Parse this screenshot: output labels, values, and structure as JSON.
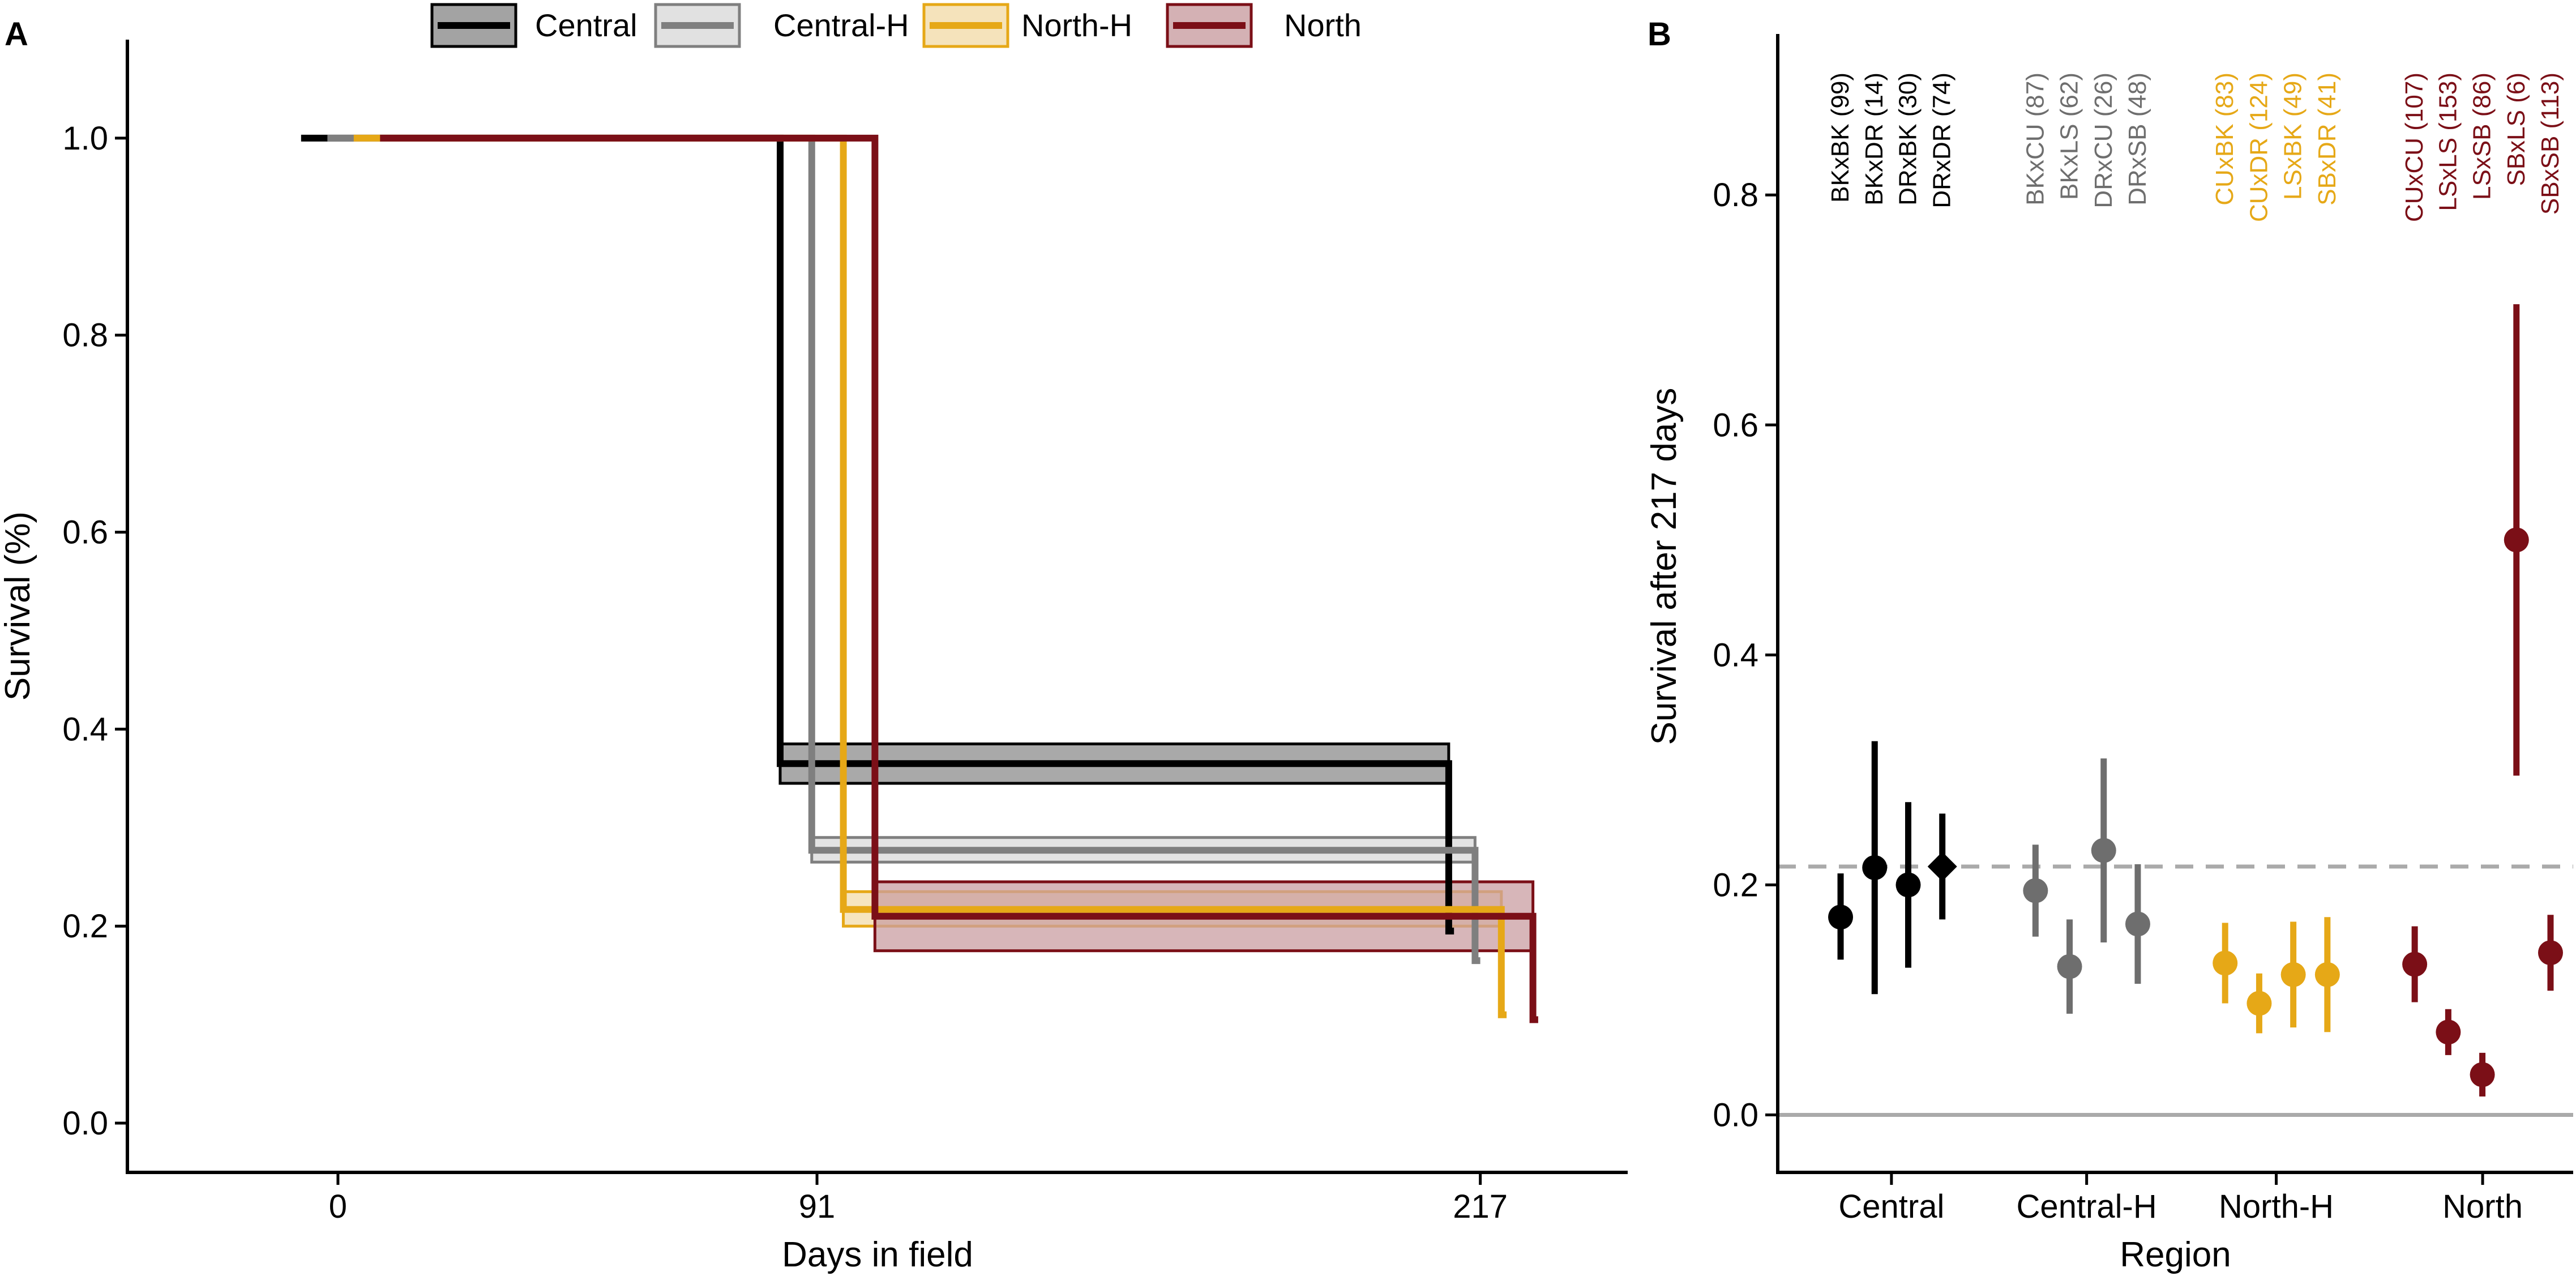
{
  "chart_data": [
    {
      "panel": "A",
      "type": "line",
      "subtype": "kaplan-meier step survival curves with confidence bands",
      "xlabel": "Days in field",
      "ylabel": "Survival (%)",
      "xlim": [
        -40,
        245
      ],
      "ylim": [
        -0.05,
        1.1
      ],
      "xticks": [
        0,
        91,
        217
      ],
      "xtick_labels": [
        "0",
        "91",
        "217"
      ],
      "yticks": [
        0,
        0.2,
        0.4,
        0.6,
        0.8,
        1
      ],
      "ytick_labels": [
        "0.0",
        "0.2",
        "0.4",
        "0.6",
        "0.8",
        "1.0"
      ],
      "legend_position": "top",
      "legend": [
        "Central",
        "Central-H",
        "North-H",
        "North"
      ],
      "series": [
        {
          "name": "Central",
          "color": "#000000",
          "fill": "#8c8c8c",
          "steps": [
            [
              -7,
              1.0
            ],
            [
              84,
              1.0
            ],
            [
              84,
              0.365
            ],
            [
              211,
              0.365
            ],
            [
              211,
              0.195
            ],
            [
              212,
              0.195
            ]
          ],
          "band": [
            [
              84,
              0.345,
              0.385
            ],
            [
              211,
              0.345,
              0.385
            ]
          ]
        },
        {
          "name": "Central-H",
          "color": "#7f7f7f",
          "fill": "#d9d9d9",
          "steps": [
            [
              -2,
              1.0
            ],
            [
              90,
              1.0
            ],
            [
              90,
              0.277
            ],
            [
              216,
              0.277
            ],
            [
              216,
              0.165
            ],
            [
              217,
              0.165
            ]
          ],
          "band": [
            [
              90,
              0.265,
              0.29
            ],
            [
              216,
              0.265,
              0.29
            ]
          ]
        },
        {
          "name": "North-H",
          "color": "#e6a817",
          "fill": "#f3dcaa",
          "steps": [
            [
              3,
              1.0
            ],
            [
              96,
              1.0
            ],
            [
              96,
              0.217
            ],
            [
              221,
              0.217
            ],
            [
              221,
              0.11
            ],
            [
              222,
              0.11
            ]
          ],
          "band": [
            [
              96,
              0.2,
              0.235
            ],
            [
              221,
              0.2,
              0.235
            ]
          ]
        },
        {
          "name": "North",
          "color": "#7b0f17",
          "fill": "#c99ea1",
          "steps": [
            [
              8,
              1.0
            ],
            [
              102,
              1.0
            ],
            [
              102,
              0.21
            ],
            [
              227,
              0.21
            ],
            [
              227,
              0.105
            ],
            [
              228,
              0.105
            ]
          ],
          "band": [
            [
              102,
              0.175,
              0.245
            ],
            [
              227,
              0.175,
              0.245
            ]
          ]
        }
      ]
    },
    {
      "panel": "B",
      "type": "scatter",
      "subtype": "point estimates with error bars",
      "xlabel": "Region",
      "ylabel": "Survival after 217 days",
      "ylim": [
        -0.05,
        0.94
      ],
      "yticks": [
        0,
        0.2,
        0.4,
        0.6,
        0.8
      ],
      "ytick_labels": [
        "0.0",
        "0.2",
        "0.4",
        "0.6",
        "0.8"
      ],
      "reference_line": 0.216,
      "groups": [
        "Central",
        "Central-H",
        "North-H",
        "North"
      ],
      "points": [
        {
          "label": "BKxBK (99)",
          "group": "Central",
          "y": 0.172,
          "lo": 0.135,
          "hi": 0.21,
          "color": "#000000",
          "shape": "circle"
        },
        {
          "label": "BKxDR (14)",
          "group": "Central",
          "y": 0.215,
          "lo": 0.105,
          "hi": 0.325,
          "color": "#000000",
          "shape": "circle"
        },
        {
          "label": "DRxBK (30)",
          "group": "Central",
          "y": 0.2,
          "lo": 0.128,
          "hi": 0.272,
          "color": "#000000",
          "shape": "circle"
        },
        {
          "label": "DRxDR (74)",
          "group": "Central",
          "y": 0.216,
          "lo": 0.17,
          "hi": 0.262,
          "color": "#000000",
          "shape": "diamond"
        },
        {
          "label": "BKxCU (87)",
          "group": "Central-H",
          "y": 0.195,
          "lo": 0.155,
          "hi": 0.235,
          "color": "#6e6e6e",
          "shape": "circle"
        },
        {
          "label": "BKxLS (62)",
          "group": "Central-H",
          "y": 0.129,
          "lo": 0.088,
          "hi": 0.17,
          "color": "#6e6e6e",
          "shape": "circle"
        },
        {
          "label": "DRxCU (26)",
          "group": "Central-H",
          "y": 0.23,
          "lo": 0.15,
          "hi": 0.31,
          "color": "#6e6e6e",
          "shape": "circle"
        },
        {
          "label": "DRxSB (48)",
          "group": "Central-H",
          "y": 0.166,
          "lo": 0.114,
          "hi": 0.218,
          "color": "#6e6e6e",
          "shape": "circle"
        },
        {
          "label": "CUxBK (83)",
          "group": "North-H",
          "y": 0.132,
          "lo": 0.097,
          "hi": 0.167,
          "color": "#e6a817",
          "shape": "circle"
        },
        {
          "label": "CUxDR (124)",
          "group": "North-H",
          "y": 0.097,
          "lo": 0.071,
          "hi": 0.123,
          "color": "#e6a817",
          "shape": "circle"
        },
        {
          "label": "LSxBK (49)",
          "group": "North-H",
          "y": 0.122,
          "lo": 0.076,
          "hi": 0.168,
          "color": "#e6a817",
          "shape": "circle"
        },
        {
          "label": "SBxDR (41)",
          "group": "North-H",
          "y": 0.122,
          "lo": 0.072,
          "hi": 0.172,
          "color": "#e6a817",
          "shape": "circle"
        },
        {
          "label": "CUxCU (107)",
          "group": "North",
          "y": 0.131,
          "lo": 0.098,
          "hi": 0.164,
          "color": "#7b0f17",
          "shape": "circle"
        },
        {
          "label": "LSxLS (153)",
          "group": "North",
          "y": 0.072,
          "lo": 0.052,
          "hi": 0.092,
          "color": "#7b0f17",
          "shape": "circle"
        },
        {
          "label": "LSxSB (86)",
          "group": "North",
          "y": 0.035,
          "lo": 0.016,
          "hi": 0.054,
          "color": "#7b0f17",
          "shape": "circle"
        },
        {
          "label": "SBxLS (6)",
          "group": "North",
          "y": 0.5,
          "lo": 0.295,
          "hi": 0.705,
          "color": "#7b0f17",
          "shape": "circle"
        },
        {
          "label": "SBxSB (113)",
          "group": "North",
          "y": 0.141,
          "lo": 0.108,
          "hi": 0.174,
          "color": "#7b0f17",
          "shape": "circle"
        }
      ]
    }
  ]
}
